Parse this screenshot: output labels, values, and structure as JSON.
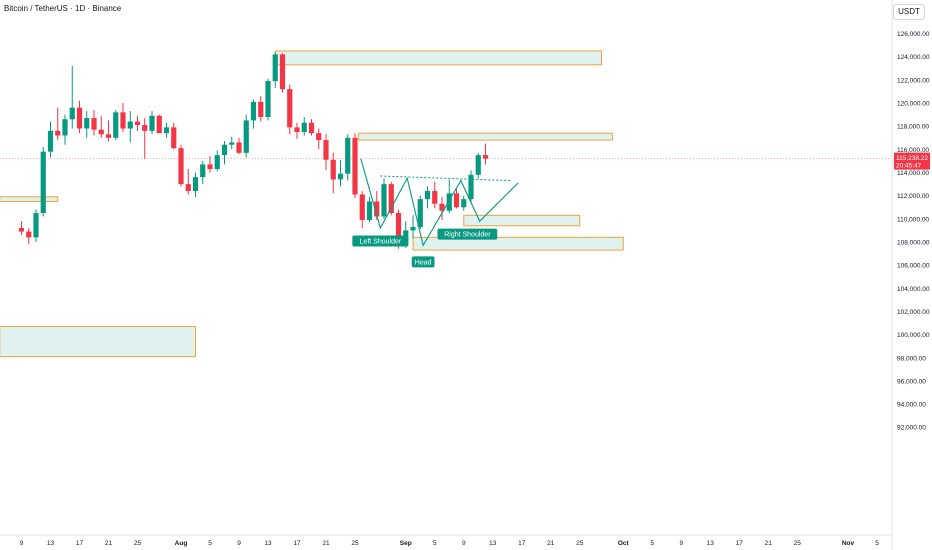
{
  "header": {
    "title": "Bitcoin / TetherUS · 1D · Binance",
    "currency": "USDT"
  },
  "chart_data": {
    "type": "candlestick",
    "symbol": "Bitcoin / TetherUS",
    "interval": "1D",
    "exchange": "Binance",
    "ylim": [
      82000,
      127000
    ],
    "y_ticks": [
      {
        "value": 126000,
        "label": "126,000.00"
      },
      {
        "value": 124000,
        "label": "124,000.00"
      },
      {
        "value": 122000,
        "label": "122,000.00"
      },
      {
        "value": 120000,
        "label": "120,000.00"
      },
      {
        "value": 118000,
        "label": "118,000.00"
      },
      {
        "value": 116000,
        "label": "116,000.00"
      },
      {
        "value": 114000,
        "label": "114,000.00"
      },
      {
        "value": 112000,
        "label": "112,000.00"
      },
      {
        "value": 110000,
        "label": "110,000.00"
      },
      {
        "value": 108000,
        "label": "108,000.00"
      },
      {
        "value": 106000,
        "label": "106,000.00"
      },
      {
        "value": 104000,
        "label": "104,000.00"
      },
      {
        "value": 102000,
        "label": "102,000.00"
      },
      {
        "value": 100000,
        "label": "100,000.00"
      },
      {
        "value": 98000,
        "label": "98,000.00"
      },
      {
        "value": 96000,
        "label": "96,000.00"
      },
      {
        "value": 94000,
        "label": "94,000.00"
      },
      {
        "value": 92000,
        "label": "92,000.00"
      }
    ],
    "x_ticks": [
      {
        "i": 0,
        "label": "9",
        "major": false
      },
      {
        "i": 4,
        "label": "13",
        "major": false
      },
      {
        "i": 8,
        "label": "17",
        "major": false
      },
      {
        "i": 12,
        "label": "21",
        "major": false
      },
      {
        "i": 16,
        "label": "25",
        "major": false
      },
      {
        "i": 22,
        "label": "Aug",
        "major": true
      },
      {
        "i": 26,
        "label": "5",
        "major": false
      },
      {
        "i": 30,
        "label": "9",
        "major": false
      },
      {
        "i": 34,
        "label": "13",
        "major": false
      },
      {
        "i": 38,
        "label": "17",
        "major": false
      },
      {
        "i": 42,
        "label": "21",
        "major": false
      },
      {
        "i": 46,
        "label": "25",
        "major": false
      },
      {
        "i": 53,
        "label": "Sep",
        "major": true
      },
      {
        "i": 57,
        "label": "5",
        "major": false
      },
      {
        "i": 61,
        "label": "9",
        "major": false
      },
      {
        "i": 65,
        "label": "13",
        "major": false
      },
      {
        "i": 69,
        "label": "17",
        "major": false
      },
      {
        "i": 73,
        "label": "21",
        "major": false
      },
      {
        "i": 77,
        "label": "25",
        "major": false
      },
      {
        "i": 83,
        "label": "Oct",
        "major": true
      },
      {
        "i": 87,
        "label": "5",
        "major": false
      },
      {
        "i": 91,
        "label": "9",
        "major": false
      },
      {
        "i": 95,
        "label": "13",
        "major": false
      },
      {
        "i": 99,
        "label": "17",
        "major": false
      },
      {
        "i": 103,
        "label": "21",
        "major": false
      },
      {
        "i": 107,
        "label": "25",
        "major": false
      },
      {
        "i": 114,
        "label": "Nov",
        "major": true
      },
      {
        "i": 118,
        "label": "5",
        "major": false
      }
    ],
    "candles": [
      [
        109200,
        109800,
        108600,
        108900
      ],
      [
        108900,
        109200,
        107800,
        108400
      ],
      [
        108400,
        110800,
        108000,
        110500
      ],
      [
        110500,
        116200,
        110200,
        115800
      ],
      [
        115800,
        118400,
        115300,
        117600
      ],
      [
        117600,
        119600,
        116800,
        117200
      ],
      [
        117200,
        119000,
        116400,
        118600
      ],
      [
        118600,
        123200,
        117800,
        119600
      ],
      [
        119600,
        120200,
        117400,
        117800
      ],
      [
        117800,
        119300,
        117000,
        118700
      ],
      [
        118700,
        119400,
        117200,
        117700
      ],
      [
        117700,
        118900,
        117000,
        117300
      ],
      [
        117300,
        118500,
        116700,
        117000
      ],
      [
        117000,
        119400,
        116800,
        119200
      ],
      [
        119200,
        120000,
        117500,
        117800
      ],
      [
        117800,
        119300,
        116600,
        118400
      ],
      [
        118400,
        118900,
        117600,
        118100
      ],
      [
        118100,
        118700,
        115200,
        117600
      ],
      [
        117600,
        119300,
        117300,
        118900
      ],
      [
        118900,
        119000,
        117400,
        117400
      ],
      [
        117400,
        118300,
        117000,
        117900
      ],
      [
        117900,
        118300,
        116000,
        116100
      ],
      [
        116100,
        116400,
        112800,
        113000
      ],
      [
        113000,
        114300,
        112100,
        112400
      ],
      [
        112400,
        114000,
        111900,
        113600
      ],
      [
        113600,
        115000,
        113000,
        114700
      ],
      [
        114700,
        115400,
        114000,
        114300
      ],
      [
        114300,
        115900,
        114100,
        115500
      ],
      [
        115500,
        116700,
        114700,
        116400
      ],
      [
        116400,
        117100,
        116000,
        116600
      ],
      [
        116600,
        117000,
        115600,
        115700
      ],
      [
        115700,
        119000,
        115300,
        118500
      ],
      [
        118500,
        120300,
        117800,
        120100
      ],
      [
        120100,
        120600,
        118400,
        118800
      ],
      [
        118800,
        122100,
        118500,
        121900
      ],
      [
        121900,
        124400,
        121300,
        124200
      ],
      [
        124200,
        124300,
        120900,
        121200
      ],
      [
        121200,
        121600,
        117300,
        117900
      ],
      [
        117900,
        118300,
        116900,
        117500
      ],
      [
        117500,
        118800,
        117200,
        118300
      ],
      [
        118300,
        118600,
        117200,
        117400
      ],
      [
        117400,
        117800,
        116000,
        116800
      ],
      [
        116800,
        117300,
        114200,
        115100
      ],
      [
        115100,
        115700,
        112200,
        113400
      ],
      [
        113400,
        115100,
        112800,
        113900
      ],
      [
        113900,
        117300,
        113300,
        117000
      ],
      [
        117000,
        117400,
        111800,
        112100
      ],
      [
        112100,
        112400,
        109200,
        109900
      ],
      [
        109900,
        111900,
        109700,
        111500
      ],
      [
        111500,
        112400,
        109900,
        110200
      ],
      [
        110200,
        113500,
        110000,
        113000
      ],
      [
        113000,
        113200,
        110300,
        110500
      ],
      [
        110500,
        110800,
        107400,
        108200
      ],
      [
        108200,
        109800,
        107500,
        109000
      ],
      [
        109000,
        110300,
        108300,
        109300
      ],
      [
        109300,
        112000,
        109100,
        111700
      ],
      [
        111700,
        112800,
        110900,
        112400
      ],
      [
        112400,
        113200,
        110900,
        111300
      ],
      [
        111300,
        111900,
        109900,
        110700
      ],
      [
        110700,
        113400,
        110500,
        112200
      ],
      [
        112200,
        112600,
        110900,
        111000
      ],
      [
        111000,
        112000,
        110700,
        111700
      ],
      [
        111700,
        114200,
        111400,
        113800
      ],
      [
        113800,
        115700,
        113500,
        115500
      ],
      [
        115500,
        116500,
        114700,
        115200
      ]
    ],
    "current_price": 115200,
    "price_tag": {
      "price": "115,238.22",
      "countdown": "20:45:47"
    },
    "zones": [
      {
        "i0": 35,
        "i1": 80,
        "ylo": 123300,
        "yhi": 124500
      },
      {
        "i0": 46.5,
        "i1": 81.5,
        "ylo": 116800,
        "yhi": 117400
      },
      {
        "i0": 61,
        "i1": 77,
        "ylo": 109400,
        "yhi": 110300
      },
      {
        "i0": 54,
        "i1": 83,
        "ylo": 107300,
        "yhi": 108400
      },
      {
        "i0": -3,
        "i1": 5,
        "ylo": 111500,
        "yhi": 111900
      },
      {
        "i0": -3,
        "i1": 24,
        "ylo": 98100,
        "yhi": 100700
      }
    ],
    "pattern": {
      "path": [
        [
          46.8,
          115200
        ],
        [
          49.5,
          109200
        ],
        [
          53.2,
          113500
        ],
        [
          55.4,
          107700
        ],
        [
          60.6,
          113300
        ],
        [
          63.2,
          109800
        ],
        [
          68.5,
          113100
        ]
      ],
      "neckline": [
        [
          49.5,
          113700
        ],
        [
          67.5,
          113300
        ]
      ]
    },
    "annotations": [
      {
        "label": "Left Shoulder",
        "i": 49.5,
        "y": 108900,
        "pos": "below"
      },
      {
        "label": "Head",
        "i": 55.4,
        "y": 107100,
        "pos": "below"
      },
      {
        "label": "Right Shoulder",
        "i": 61.5,
        "y": 109500,
        "pos": "below"
      }
    ]
  }
}
